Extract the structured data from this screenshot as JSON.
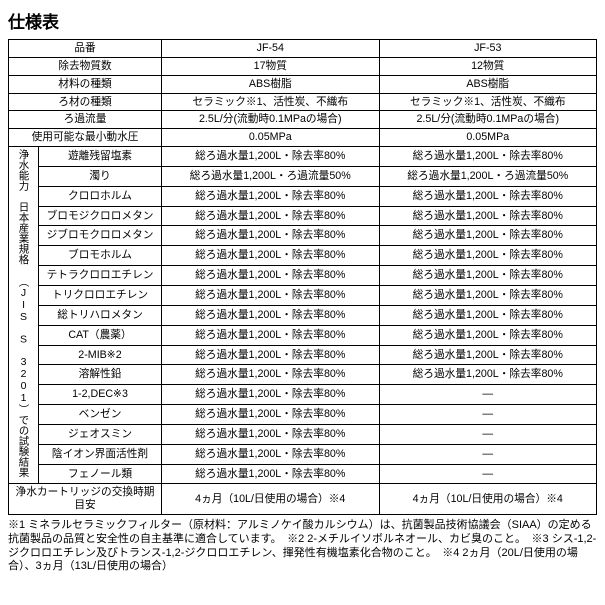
{
  "title": "仕様表",
  "vertical_label": "浄水能力　日本産業規格\n（JIS　S　3201）での試験結果",
  "head": {
    "hinban": "品番",
    "jf54": "JF-54",
    "jf53": "JF-53"
  },
  "rows_top": [
    {
      "label": "除去物質数",
      "c1": "17物質",
      "c2": "12物質"
    },
    {
      "label": "材料の種類",
      "c1": "ABS樹脂",
      "c2": "ABS樹脂"
    },
    {
      "label": "ろ材の種類",
      "c1": "セラミック※1、活性炭、不織布",
      "c2": "セラミック※1、活性炭、不織布"
    },
    {
      "label": "ろ過流量",
      "c1": "2.5L/分(流動時0.1MPaの場合)",
      "c2": "2.5L/分(流動時0.1MPaの場合)"
    },
    {
      "label": "使用可能な最小動水圧",
      "c1": "0.05MPa",
      "c2": "0.05MPa"
    }
  ],
  "rows_group": [
    {
      "label": "遊離残留塩素",
      "c1": "総ろ過水量1,200L・除去率80%",
      "c2": "総ろ過水量1,200L・除去率80%"
    },
    {
      "label": "濁り",
      "c1": "総ろ過水量1,200L・ろ過流量50%",
      "c2": "総ろ過水量1,200L・ろ過流量50%"
    },
    {
      "label": "クロロホルム",
      "c1": "総ろ過水量1,200L・除去率80%",
      "c2": "総ろ過水量1,200L・除去率80%"
    },
    {
      "label": "ブロモジクロロメタン",
      "c1": "総ろ過水量1,200L・除去率80%",
      "c2": "総ろ過水量1,200L・除去率80%"
    },
    {
      "label": "ジブロモクロロメタン",
      "c1": "総ろ過水量1,200L・除去率80%",
      "c2": "総ろ過水量1,200L・除去率80%"
    },
    {
      "label": "ブロモホルム",
      "c1": "総ろ過水量1,200L・除去率80%",
      "c2": "総ろ過水量1,200L・除去率80%"
    },
    {
      "label": "テトラクロロエチレン",
      "c1": "総ろ過水量1,200L・除去率80%",
      "c2": "総ろ過水量1,200L・除去率80%"
    },
    {
      "label": "トリクロロエチレン",
      "c1": "総ろ過水量1,200L・除去率80%",
      "c2": "総ろ過水量1,200L・除去率80%"
    },
    {
      "label": "総トリハロメタン",
      "c1": "総ろ過水量1,200L・除去率80%",
      "c2": "総ろ過水量1,200L・除去率80%"
    },
    {
      "label": "CAT（農薬）",
      "c1": "総ろ過水量1,200L・除去率80%",
      "c2": "総ろ過水量1,200L・除去率80%"
    },
    {
      "label": "2-MIB※2",
      "c1": "総ろ過水量1,200L・除去率80%",
      "c2": "総ろ過水量1,200L・除去率80%"
    },
    {
      "label": "溶解性鉛",
      "c1": "総ろ過水量1,200L・除去率80%",
      "c2": "総ろ過水量1,200L・除去率80%"
    },
    {
      "label": "1-2,DEC※3",
      "c1": "総ろ過水量1,200L・除去率80%",
      "c2": "—"
    },
    {
      "label": "ベンゼン",
      "c1": "総ろ過水量1,200L・除去率80%",
      "c2": "—"
    },
    {
      "label": "ジェオスミン",
      "c1": "総ろ過水量1,200L・除去率80%",
      "c2": "—"
    },
    {
      "label": "陰イオン界面活性剤",
      "c1": "総ろ過水量1,200L・除去率80%",
      "c2": "—"
    },
    {
      "label": "フェノール類",
      "c1": "総ろ過水量1,200L・除去率80%",
      "c2": "—"
    }
  ],
  "row_bottom": {
    "label": "浄水カートリッジの交換時期目安",
    "c1": "4ヵ月（10L/日使用の場合）※4",
    "c2": "4ヵ月（10L/日使用の場合）※4"
  },
  "footnotes": "※1 ミネラルセラミックフィルター（原材料：アルミノケイ酸カルシウム）は、抗菌製品技術協議会（SIAA）の定める抗菌製品の品質と安全性の自主基準に適合しています。　※2 2-メチルイソボルネオール、カビ臭のこと。　※3 シス-1,2-ジクロロエチレン及びトランス-1,2-ジクロロエチレン、揮発性有機塩素化合物のこと。　※4 2ヵ月（20L/日使用の場合）、3ヵ月（13L/日使用の場合）"
}
